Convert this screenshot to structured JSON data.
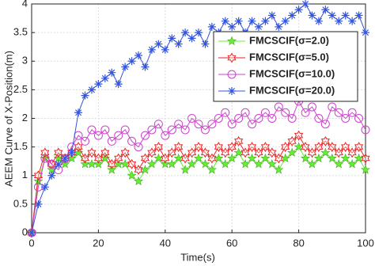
{
  "chart_data": {
    "type": "line",
    "xlabel": "Time(s)",
    "ylabel": "AEEM Curve of X-Position(m)",
    "x": [
      0,
      2,
      4,
      6,
      8,
      10,
      12,
      14,
      16,
      18,
      20,
      22,
      24,
      26,
      28,
      30,
      32,
      34,
      36,
      38,
      40,
      42,
      44,
      46,
      48,
      50,
      52,
      54,
      56,
      58,
      60,
      62,
      64,
      66,
      68,
      70,
      72,
      74,
      76,
      78,
      80,
      82,
      84,
      86,
      88,
      90,
      92,
      94,
      96,
      98,
      100
    ],
    "xlim": [
      0,
      100
    ],
    "xticks": [
      0,
      20,
      40,
      60,
      80,
      100
    ],
    "ylim": [
      0,
      4
    ],
    "yticks": [
      0,
      0.5,
      1,
      1.5,
      2,
      2.5,
      3,
      3.5,
      4
    ],
    "grid": true,
    "legend": "top-right",
    "series": [
      {
        "name": "FMCSCIF(σ=2.0)",
        "color": "#66ee33",
        "marker": "star",
        "values": [
          0,
          0.9,
          1.3,
          1.1,
          1.3,
          1.2,
          1.3,
          1.4,
          1.2,
          1.2,
          1.2,
          1.3,
          1.1,
          1.2,
          1.2,
          1.0,
          0.9,
          1.1,
          1.2,
          1.3,
          1.2,
          1.2,
          1.3,
          1.1,
          1.2,
          1.3,
          1.2,
          1.1,
          1.3,
          1.2,
          1.3,
          1.4,
          1.2,
          1.3,
          1.2,
          1.3,
          1.2,
          1.1,
          1.3,
          1.4,
          1.5,
          1.3,
          1.2,
          1.3,
          1.4,
          1.3,
          1.2,
          1.3,
          1.2,
          1.3,
          1.1
        ]
      },
      {
        "name": "FMCSCIF(σ=5.0)",
        "color": "#ee2222",
        "marker": "hexagram",
        "values": [
          0,
          1.0,
          1.4,
          1.2,
          1.4,
          1.3,
          1.4,
          1.5,
          1.3,
          1.4,
          1.3,
          1.4,
          1.2,
          1.3,
          1.4,
          1.2,
          1.1,
          1.3,
          1.4,
          1.5,
          1.3,
          1.4,
          1.5,
          1.3,
          1.4,
          1.5,
          1.4,
          1.3,
          1.5,
          1.4,
          1.5,
          1.6,
          1.4,
          1.5,
          1.4,
          1.5,
          1.4,
          1.3,
          1.5,
          1.6,
          1.7,
          1.5,
          1.4,
          1.5,
          1.6,
          1.5,
          1.4,
          1.5,
          1.4,
          1.5,
          1.3
        ]
      },
      {
        "name": "FMCSCIF(σ=10.0)",
        "color": "#cc44cc",
        "marker": "circle",
        "values": [
          0,
          0.8,
          1.3,
          1.2,
          1.1,
          1.3,
          1.5,
          1.7,
          1.6,
          1.8,
          1.7,
          1.8,
          1.6,
          1.7,
          1.8,
          1.6,
          1.5,
          1.7,
          1.8,
          1.9,
          1.7,
          1.8,
          1.9,
          1.8,
          2.0,
          1.9,
          1.8,
          1.9,
          2.0,
          2.1,
          1.9,
          2.0,
          2.1,
          1.9,
          2.0,
          2.1,
          2.0,
          2.2,
          2.1,
          2.0,
          2.3,
          2.1,
          2.2,
          2.0,
          1.9,
          2.2,
          2.1,
          2.0,
          2.1,
          2.0,
          1.8
        ]
      },
      {
        "name": "FMCSCIF(σ=20.0)",
        "color": "#3355dd",
        "marker": "asterisk",
        "values": [
          0,
          0.5,
          0.8,
          1.0,
          1.2,
          1.3,
          1.4,
          2.1,
          2.4,
          2.5,
          2.6,
          2.7,
          2.8,
          2.6,
          2.9,
          3.0,
          3.1,
          2.9,
          3.2,
          3.3,
          3.2,
          3.4,
          3.3,
          3.5,
          3.4,
          3.5,
          3.3,
          3.6,
          3.5,
          3.7,
          3.6,
          3.7,
          3.5,
          3.7,
          3.6,
          3.7,
          3.8,
          3.6,
          3.7,
          3.8,
          3.9,
          4.0,
          3.8,
          3.7,
          3.9,
          3.8,
          3.7,
          3.8,
          3.7,
          3.8,
          3.5
        ]
      }
    ]
  }
}
